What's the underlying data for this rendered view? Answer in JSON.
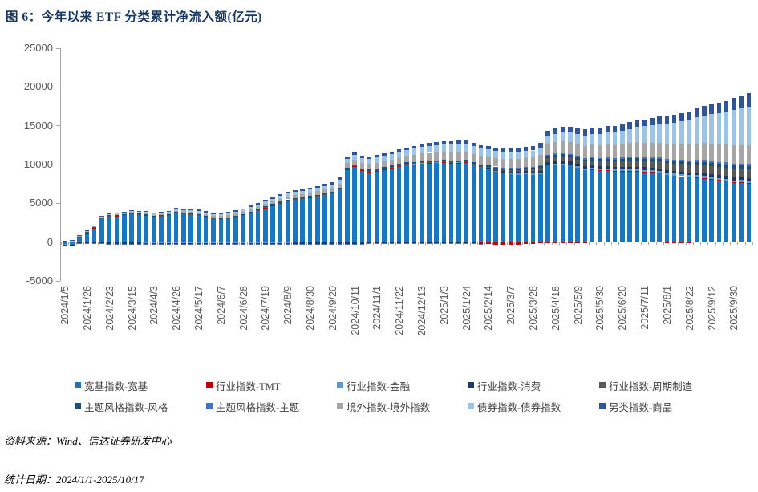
{
  "header": {
    "title": "图 6：今年以来 ETF 分类累计净流入额(亿元)"
  },
  "footer": {
    "source": "资料来源：Wind、信达证券研发中心",
    "stats_date": "统计日期：2024/1/1-2025/10/17"
  },
  "legend": {
    "items": [
      {
        "label": "宽基指数-宽基",
        "color": "#1877C3"
      },
      {
        "label": "行业指数-TMT",
        "color": "#C00000"
      },
      {
        "label": "行业指数-金融",
        "color": "#5B9BD5"
      },
      {
        "label": "行业指数-消费",
        "color": "#1F3864"
      },
      {
        "label": "行业指数-周期制造",
        "color": "#595959"
      },
      {
        "label": "主题风格指数-风格",
        "color": "#1F4E79"
      },
      {
        "label": "主题风格指数-主题",
        "color": "#4472C4"
      },
      {
        "label": "境外指数-境外指数",
        "color": "#A6A6A6"
      },
      {
        "label": "债券指数-债券指数",
        "color": "#9DC3E6"
      },
      {
        "label": "另类指数-商品",
        "color": "#2F5597"
      }
    ]
  },
  "chart_data": {
    "type": "bar",
    "subtype": "stacked-weekly-cumulative",
    "title": "图 6：今年以来 ETF 分类累计净流入额(亿元)",
    "ylabel": "亿元",
    "ylim": [
      -5000,
      25000
    ],
    "y_ticks": [
      25000,
      20000,
      15000,
      10000,
      5000,
      0,
      -5000
    ],
    "grid": false,
    "legend_position": "bottom",
    "bar_count": 93,
    "x_tick_every": 3,
    "x_tick_labels": [
      "2024/1/5",
      "2024/1/26",
      "2024/2/23",
      "2024/3/15",
      "2024/4/3",
      "2024/4/26",
      "2024/5/17",
      "2024/6/7",
      "2024/6/28",
      "2024/7/19",
      "2024/8/9",
      "2024/8/30",
      "2024/9/20",
      "2024/10/11",
      "2024/11/1",
      "2024/11/22",
      "2024/12/13",
      "2025/1/3",
      "2025/1/24",
      "2025/2/14",
      "2025/3/7",
      "2025/3/28",
      "2025/4/18",
      "2025/5/9",
      "2025/5/30",
      "2025/6/20",
      "2025/7/11",
      "2025/8/1",
      "2025/8/22",
      "2025/9/12",
      "2025/9/30"
    ],
    "series": [
      {
        "name": "宽基指数-宽基",
        "color": "#1877C3",
        "values": [
          -250,
          -300,
          600,
          1200,
          1800,
          3000,
          3300,
          3350,
          3400,
          3600,
          3500,
          3450,
          3200,
          3300,
          3400,
          3700,
          3600,
          3500,
          3400,
          3200,
          3000,
          2900,
          3000,
          3200,
          3400,
          3700,
          4000,
          4400,
          4700,
          5000,
          5300,
          5450,
          5600,
          5750,
          5900,
          6100,
          6300,
          6800,
          9300,
          9700,
          9200,
          9000,
          9100,
          9300,
          9500,
          9700,
          9900,
          10000,
          10100,
          10150,
          10200,
          10200,
          10100,
          10150,
          10200,
          10000,
          9700,
          9400,
          9100,
          8900,
          8800,
          8700,
          8750,
          8700,
          8800,
          9900,
          10000,
          10000,
          9900,
          9600,
          9300,
          9300,
          9200,
          9200,
          9100,
          9100,
          9100,
          9100,
          9000,
          8950,
          8900,
          8700,
          8600,
          8500,
          8400,
          8300,
          8200,
          8000,
          7900,
          7800,
          7600,
          7600,
          7500
        ]
      },
      {
        "name": "行业指数-TMT",
        "color": "#C00000",
        "values": [
          0,
          0,
          30,
          50,
          50,
          50,
          50,
          50,
          50,
          50,
          50,
          50,
          50,
          50,
          50,
          50,
          50,
          50,
          50,
          50,
          50,
          60,
          60,
          60,
          60,
          60,
          60,
          60,
          60,
          60,
          60,
          60,
          60,
          60,
          60,
          60,
          60,
          60,
          150,
          150,
          150,
          100,
          100,
          100,
          100,
          100,
          100,
          100,
          100,
          100,
          100,
          100,
          100,
          100,
          100,
          -50,
          -150,
          -250,
          -300,
          -350,
          -350,
          -300,
          -250,
          -200,
          -150,
          -100,
          -100,
          -80,
          -60,
          -50,
          -30,
          50,
          60,
          80,
          80,
          80,
          80,
          90,
          90,
          80,
          60,
          -100,
          -150,
          -120,
          -80,
          60,
          80,
          100,
          110,
          120,
          130,
          140,
          150
        ]
      },
      {
        "name": "行业指数-金融",
        "color": "#5B9BD5",
        "values": [
          -80,
          -80,
          -80,
          -80,
          -80,
          -80,
          -80,
          -80,
          -80,
          -80,
          -80,
          -100,
          -100,
          -100,
          -100,
          -100,
          -100,
          -100,
          -100,
          -100,
          -100,
          -100,
          -100,
          -100,
          -100,
          -100,
          -100,
          -100,
          -100,
          -100,
          -100,
          -60,
          -60,
          -60,
          -60,
          -60,
          -60,
          -60,
          -60,
          -60,
          -60,
          50,
          50,
          50,
          50,
          50,
          50,
          50,
          50,
          50,
          50,
          80,
          80,
          80,
          80,
          80,
          80,
          80,
          80,
          80,
          80,
          150,
          150,
          150,
          150,
          150,
          150,
          150,
          150,
          150,
          150,
          200,
          200,
          200,
          200,
          200,
          200,
          200,
          200,
          200,
          200,
          250,
          250,
          250,
          250,
          250,
          250,
          250,
          250,
          250,
          250,
          250,
          250,
          250
        ]
      },
      {
        "name": "行业指数-消费",
        "color": "#1F3864",
        "values": [
          -100,
          -100,
          -100,
          -100,
          -100,
          -100,
          -150,
          -150,
          -150,
          -150,
          -150,
          -150,
          -150,
          -150,
          -150,
          -150,
          -150,
          -150,
          -150,
          -150,
          -150,
          -150,
          -150,
          -150,
          -150,
          -150,
          -150,
          -150,
          -150,
          -150,
          -150,
          -150,
          -150,
          -150,
          -150,
          -150,
          -150,
          -150,
          -150,
          -150,
          -150,
          -120,
          -120,
          -120,
          -120,
          -120,
          -120,
          -120,
          -120,
          -120,
          -120,
          -120,
          -120,
          -120,
          -120,
          -120,
          -120,
          100,
          130,
          160,
          200,
          220,
          240,
          260,
          270,
          290,
          300,
          320,
          320,
          320,
          320,
          320,
          320,
          320,
          320,
          350,
          350,
          350,
          350,
          350,
          350,
          350,
          350,
          350,
          350,
          380,
          380,
          380,
          380,
          380,
          380,
          380,
          380
        ]
      },
      {
        "name": "行业指数-周期制造",
        "color": "#595959",
        "values": [
          40,
          40,
          40,
          40,
          40,
          40,
          40,
          40,
          40,
          40,
          40,
          40,
          40,
          40,
          40,
          40,
          40,
          40,
          40,
          40,
          40,
          40,
          40,
          40,
          40,
          40,
          40,
          40,
          40,
          40,
          40,
          40,
          40,
          40,
          40,
          40,
          40,
          40,
          40,
          40,
          40,
          60,
          60,
          60,
          60,
          60,
          60,
          60,
          60,
          60,
          60,
          60,
          60,
          60,
          60,
          60,
          60,
          100,
          130,
          160,
          200,
          230,
          270,
          300,
          400,
          500,
          550,
          570,
          580,
          600,
          620,
          630,
          650,
          670,
          680,
          700,
          730,
          770,
          800,
          830,
          870,
          900,
          930,
          970,
          1000,
          1020,
          1030,
          1050,
          1070,
          1080,
          1100,
          1120,
          1150
        ]
      },
      {
        "name": "主题风格指数-风格",
        "color": "#1F4E79",
        "values": [
          80,
          80,
          80,
          80,
          80,
          80,
          80,
          80,
          80,
          80,
          80,
          80,
          80,
          80,
          80,
          80,
          80,
          80,
          80,
          80,
          80,
          100,
          100,
          100,
          100,
          100,
          100,
          100,
          100,
          100,
          100,
          100,
          100,
          100,
          100,
          100,
          100,
          100,
          100,
          100,
          100,
          150,
          150,
          150,
          150,
          150,
          150,
          150,
          150,
          150,
          150,
          150,
          150,
          150,
          150,
          150,
          150,
          200,
          200,
          200,
          200,
          200,
          200,
          200,
          200,
          280,
          280,
          280,
          280,
          280,
          280,
          280,
          280,
          280,
          280,
          280,
          330,
          330,
          330,
          330,
          330,
          330,
          330,
          330,
          330,
          330,
          400,
          400,
          400,
          400,
          400,
          400,
          400
        ]
      },
      {
        "name": "主题风格指数-主题",
        "color": "#4472C4",
        "values": [
          -100,
          -100,
          -100,
          -100,
          -100,
          -100,
          -100,
          -100,
          -100,
          -100,
          -100,
          -100,
          -100,
          -100,
          -100,
          -100,
          -100,
          -100,
          -100,
          -100,
          -100,
          -100,
          -100,
          -100,
          -100,
          -100,
          -100,
          -100,
          -100,
          -100,
          -100,
          -100,
          -100,
          -100,
          -100,
          -100,
          -100,
          -100,
          -100,
          -100,
          -100,
          -50,
          -50,
          -50,
          -50,
          -50,
          -50,
          -50,
          -50,
          -50,
          -50,
          -50,
          -50,
          -50,
          -50,
          -50,
          -50,
          100,
          100,
          100,
          100,
          100,
          100,
          100,
          100,
          150,
          150,
          150,
          150,
          150,
          150,
          150,
          150,
          150,
          150,
          200,
          200,
          200,
          200,
          200,
          200,
          200,
          200,
          200,
          200,
          250,
          250,
          250,
          250,
          250,
          250,
          250,
          250
        ]
      },
      {
        "name": "境外指数-境外指数",
        "color": "#A6A6A6",
        "values": [
          60,
          70,
          75,
          80,
          85,
          95,
          100,
          110,
          120,
          130,
          135,
          140,
          150,
          160,
          170,
          180,
          195,
          205,
          220,
          230,
          240,
          250,
          260,
          270,
          280,
          295,
          310,
          330,
          345,
          360,
          380,
          395,
          410,
          430,
          445,
          460,
          480,
          530,
          600,
          680,
          700,
          720,
          750,
          770,
          780,
          800,
          850,
          900,
          950,
          990,
          1020,
          1050,
          1070,
          1080,
          1100,
          1100,
          1100,
          1100,
          1120,
          1130,
          1150,
          1170,
          1180,
          1200,
          1300,
          1400,
          1500,
          1520,
          1530,
          1550,
          1580,
          1620,
          1650,
          1680,
          1720,
          1750,
          1780,
          1820,
          1850,
          1880,
          1920,
          1950,
          2000,
          2050,
          2100,
          2150,
          2200,
          2250,
          2280,
          2320,
          2350,
          2370,
          2400
        ]
      },
      {
        "name": "债券指数-债券指数",
        "color": "#9DC3E6",
        "values": [
          0,
          10,
          20,
          30,
          35,
          40,
          50,
          60,
          70,
          80,
          95,
          105,
          120,
          135,
          150,
          160,
          175,
          185,
          200,
          215,
          225,
          240,
          255,
          265,
          280,
          295,
          315,
          330,
          345,
          360,
          380,
          395,
          415,
          430,
          445,
          465,
          480,
          520,
          560,
          600,
          630,
          650,
          680,
          690,
          710,
          720,
          760,
          800,
          850,
          900,
          950,
          1000,
          1020,
          1030,
          1050,
          1000,
          950,
          900,
          870,
          840,
          820,
          840,
          870,
          900,
          950,
          1000,
          1050,
          1120,
          1180,
          1250,
          1320,
          1380,
          1450,
          1530,
          1610,
          1700,
          1820,
          1960,
          2100,
          2260,
          2430,
          2600,
          2760,
          2930,
          3100,
          3330,
          3560,
          3800,
          3950,
          4100,
          4600,
          4800,
          5000
        ]
      },
      {
        "name": "另类指数-商品",
        "color": "#2F5597",
        "values": [
          30,
          40,
          50,
          60,
          70,
          80,
          90,
          100,
          110,
          120,
          125,
          130,
          140,
          145,
          150,
          160,
          163,
          166,
          170,
          173,
          176,
          180,
          183,
          186,
          190,
          193,
          196,
          200,
          203,
          206,
          210,
          216,
          223,
          230,
          237,
          243,
          250,
          280,
          320,
          350,
          340,
          335,
          330,
          333,
          336,
          340,
          343,
          346,
          350,
          370,
          385,
          400,
          405,
          410,
          420,
          430,
          440,
          450,
          465,
          480,
          500,
          515,
          530,
          550,
          620,
          700,
          750,
          760,
          770,
          780,
          785,
          790,
          800,
          815,
          830,
          850,
          865,
          880,
          900,
          930,
          965,
          1000,
          1030,
          1065,
          1100,
          1160,
          1230,
          1300,
          1360,
          1430,
          1500,
          1600,
          1700
        ]
      }
    ]
  }
}
